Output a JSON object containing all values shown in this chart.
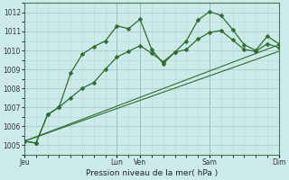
{
  "background_color": "#cdeaea",
  "grid_color_major": "#a8cccc",
  "grid_color_minor": "#b8d8d8",
  "line_color": "#2d6e2d",
  "xlabel": "Pression niveau de la mer( hPa )",
  "ylim": [
    1004.5,
    1012.5
  ],
  "yticks": [
    1005,
    1006,
    1007,
    1008,
    1009,
    1010,
    1011,
    1012
  ],
  "xlim": [
    0,
    11
  ],
  "day_positions": [
    0,
    4,
    5,
    8,
    11
  ],
  "day_labels": [
    "Jeu",
    "Lun",
    "Ven",
    "Sam",
    "Dim"
  ],
  "series1_x": [
    0,
    0.5,
    1.0,
    1.5,
    2.0,
    2.5,
    3.0,
    3.5,
    4.0,
    4.5,
    5.0,
    5.5,
    6.0,
    6.5,
    7.0,
    7.5,
    8.0,
    8.5,
    9.0,
    9.5,
    10.0,
    10.5,
    11.0
  ],
  "series1_y": [
    1005.2,
    1005.1,
    1006.6,
    1007.0,
    1008.8,
    1009.8,
    1010.2,
    1010.5,
    1011.3,
    1011.15,
    1011.65,
    1010.05,
    1009.3,
    1009.9,
    1010.5,
    1011.6,
    1012.05,
    1011.85,
    1011.1,
    1010.3,
    1010.0,
    1010.75,
    1010.35
  ],
  "series2_x": [
    0,
    0.5,
    1.0,
    1.5,
    2.0,
    2.5,
    3.0,
    3.5,
    4.0,
    4.5,
    5.0,
    5.5,
    6.0,
    6.5,
    7.0,
    7.5,
    8.0,
    8.5,
    9.0,
    9.5,
    10.0,
    10.5,
    11.0
  ],
  "series2_y": [
    1005.2,
    1005.1,
    1006.6,
    1007.0,
    1007.5,
    1008.0,
    1008.3,
    1009.0,
    1009.65,
    1009.95,
    1010.25,
    1009.85,
    1009.4,
    1009.9,
    1010.05,
    1010.6,
    1010.95,
    1011.05,
    1010.55,
    1010.05,
    1009.95,
    1010.35,
    1010.15
  ],
  "trend1_x": [
    0,
    11
  ],
  "trend1_y": [
    1005.2,
    1009.95
  ],
  "trend2_x": [
    0,
    11
  ],
  "trend2_y": [
    1005.2,
    1010.3
  ],
  "markersize": 2.5
}
